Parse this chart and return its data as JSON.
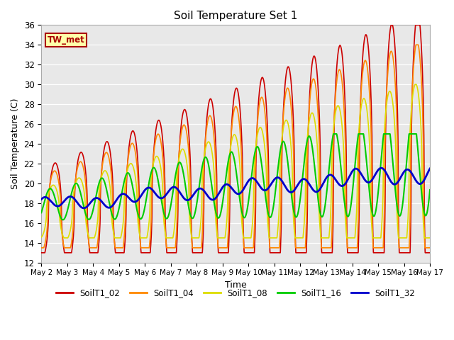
{
  "title": "Soil Temperature Set 1",
  "xlabel": "Time",
  "ylabel": "Soil Temperature (C)",
  "ylim": [
    12,
    36
  ],
  "xlim": [
    0,
    15
  ],
  "plot_bg": "#e8e8e8",
  "line_colors": {
    "SoilT1_02": "#cc0000",
    "SoilT1_04": "#ff8800",
    "SoilT1_08": "#dddd00",
    "SoilT1_16": "#00cc00",
    "SoilT1_32": "#0000cc"
  },
  "line_widths": {
    "SoilT1_02": 1.2,
    "SoilT1_04": 1.2,
    "SoilT1_08": 1.2,
    "SoilT1_16": 1.5,
    "SoilT1_32": 2.0
  },
  "tw_met_label": "TW_met",
  "tw_met_bg": "#ffffaa",
  "tw_met_border": "#aa0000",
  "x_tick_labels": [
    "May 2",
    "May 3",
    "May 4",
    "May 5",
    "May 6",
    "May 7",
    "May 8",
    "May 9",
    "May 10",
    "May 11",
    "May 12",
    "May 13",
    "May 14",
    "May 15",
    "May 16",
    "May 17"
  ],
  "legend_labels": [
    "SoilT1_02",
    "SoilT1_04",
    "SoilT1_08",
    "SoilT1_16",
    "SoilT1_32"
  ]
}
